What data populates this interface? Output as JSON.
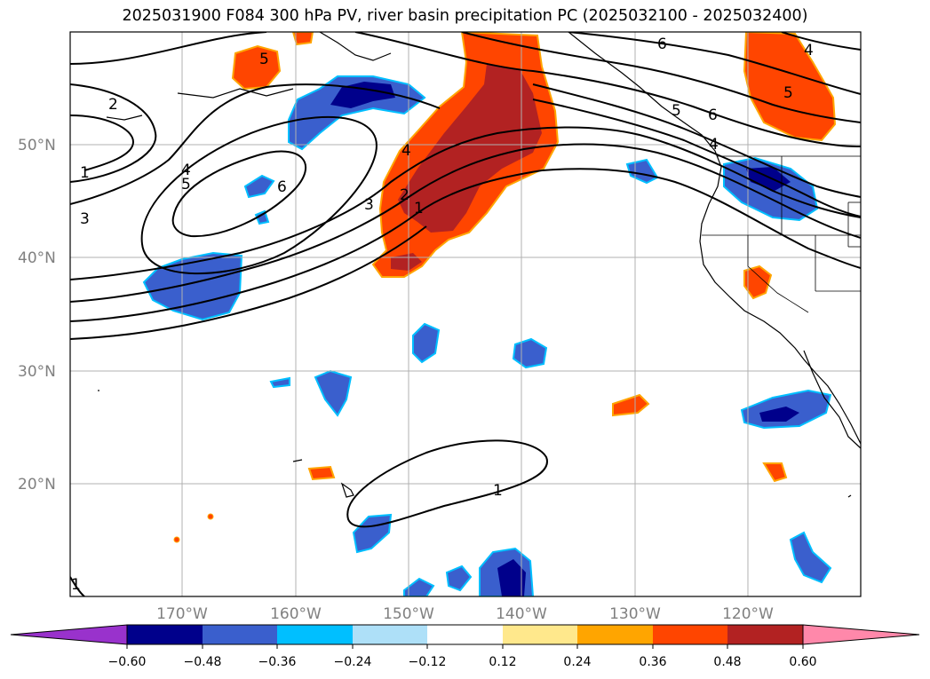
{
  "title": "2025031900 F084 300 hPa PV, river basin precipitation PC (2025032100 - 2025032400)",
  "lat_labels": [
    "50°N",
    "40°N",
    "30°N",
    "20°N"
  ],
  "lon_labels": [
    "170°W",
    "160°W",
    "150°W",
    "140°W",
    "130°W",
    "120°W"
  ],
  "pv_contour_labels": [
    "2",
    "1",
    "3",
    "4",
    "5",
    "6",
    "5",
    "4",
    "3",
    "2",
    "1",
    "6",
    "5",
    "6",
    "4",
    "4",
    "5",
    "1",
    "1"
  ],
  "colorbar": {
    "ticks": [
      "−0.60",
      "−0.48",
      "−0.36",
      "−0.24",
      "−0.12",
      "0.12",
      "0.24",
      "0.36",
      "0.48",
      "0.60"
    ],
    "colors": [
      "#9932cc",
      "#00008b",
      "#3a5fcd",
      "#00bfff",
      "#aee0f8",
      "#ffffff",
      "#ffe88c",
      "#ffa500",
      "#ff4500",
      "#b22222",
      "#ff88aa"
    ]
  },
  "colors": {
    "neg_strong": "#00008b",
    "neg_mid": "#3a5fcd",
    "neg_light": "#00bfff",
    "pos_mid": "#ff4500",
    "pos_strong": "#b22222",
    "pos_light": "#ffa500",
    "grid": "#b0b0b0"
  }
}
